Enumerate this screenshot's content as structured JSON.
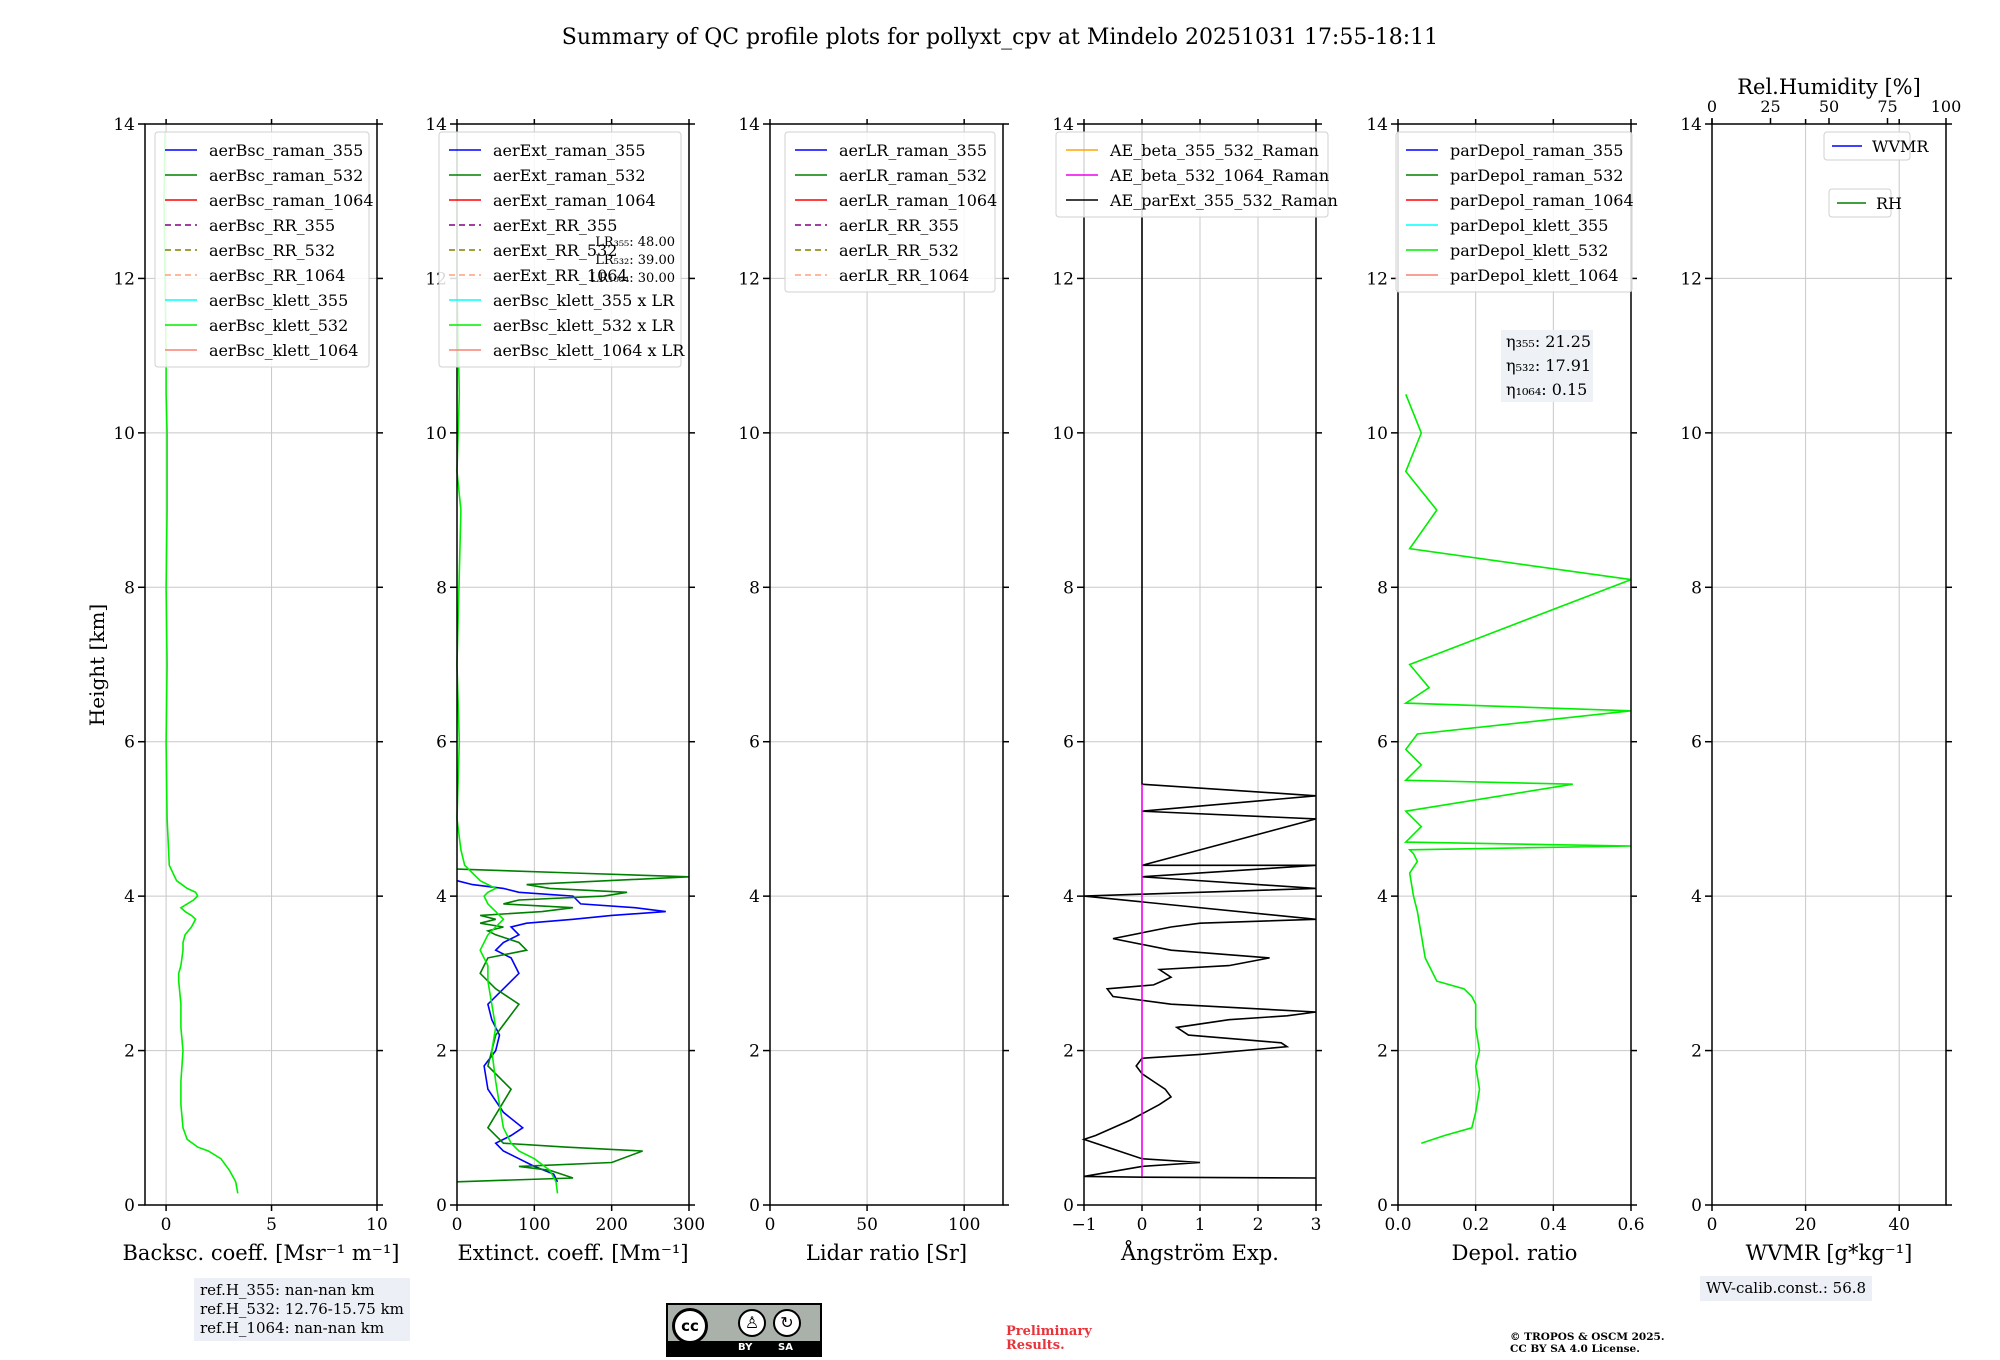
{
  "chart_data": {
    "type": "line",
    "title": "Summary of QC profile plots for pollyxt_cpv at Mindelo 20251031 17:55-18:11",
    "ylabel": "Height [km]",
    "ylim": [
      0,
      14
    ],
    "yticks": [
      "0",
      "2",
      "4",
      "6",
      "8",
      "10",
      "12",
      "14"
    ],
    "panels": [
      {
        "id": "bsc",
        "xlabel": "Backsc. coeff. [Msr⁻¹ m⁻¹]",
        "xlim": [
          -1,
          10
        ],
        "xticks": [
          0,
          5,
          10
        ],
        "legend": [
          "aerBsc_raman_355",
          "aerBsc_raman_532",
          "aerBsc_raman_1064",
          "aerBsc_RR_355",
          "aerBsc_RR_532",
          "aerBsc_RR_1064",
          "aerBsc_klett_355",
          "aerBsc_klett_532",
          "aerBsc_klett_1064"
        ],
        "series": [
          {
            "name": "aerBsc_klett_532",
            "color": "#00ee00",
            "x": [
              3.4,
              3.3,
              3.0,
              2.6,
              2.0,
              1.5,
              1.0,
              0.8,
              0.7,
              0.7,
              0.8,
              0.7,
              0.7,
              0.6,
              0.6,
              0.7,
              0.8,
              0.8,
              0.9,
              1.2,
              1.4,
              1.2,
              0.9,
              0.7,
              1.0,
              1.3,
              1.5,
              1.4,
              1.0,
              0.5,
              0.15,
              0.05,
              0.0,
              0.05,
              0.0,
              0.05,
              0.05,
              0.0,
              0.0,
              -0.05,
              -0.1,
              -0.05
            ],
            "y": [
              0.15,
              0.3,
              0.45,
              0.6,
              0.7,
              0.75,
              0.85,
              1.0,
              1.3,
              1.6,
              2.0,
              2.3,
              2.6,
              2.9,
              3.0,
              3.1,
              3.3,
              3.4,
              3.5,
              3.6,
              3.7,
              3.75,
              3.8,
              3.85,
              3.9,
              3.95,
              4.0,
              4.05,
              4.1,
              4.2,
              4.4,
              5.0,
              6.0,
              7.0,
              8.0,
              9.0,
              10.0,
              10.5,
              11.0,
              12.0,
              13.0,
              13.9
            ]
          }
        ]
      },
      {
        "id": "ext",
        "xlabel": "Extinct. coeff. [Mm⁻¹]",
        "xlim": [
          0,
          300
        ],
        "xticks": [
          0,
          100,
          200,
          300
        ],
        "legend": [
          "aerExt_raman_355",
          "aerExt_raman_532",
          "aerExt_raman_1064",
          "aerExt_RR_355",
          "aerExt_RR_532",
          "aerExt_RR_1064",
          "aerBsc_klett_355 x LR",
          "aerBsc_klett_532 x LR",
          "aerBsc_klett_1064 x LR"
        ],
        "lr_labels": [
          "LR₃₅₅: 48.00",
          "LR₅₃₂: 39.00",
          "LR₁₀₆₄: 30.00"
        ],
        "series": [
          {
            "name": "aerExt_raman_355",
            "color": "#0000ff",
            "x": [
              130,
              125,
              100,
              80,
              60,
              50,
              70,
              85,
              60,
              40,
              35,
              50,
              55,
              45,
              40,
              60,
              80,
              70,
              50,
              60,
              80,
              70,
              90,
              150,
              200,
              270,
              230,
              160,
              150,
              80,
              60,
              20,
              0
            ],
            "y": [
              0.3,
              0.4,
              0.5,
              0.6,
              0.7,
              0.8,
              0.9,
              1.0,
              1.2,
              1.5,
              1.8,
              2.0,
              2.2,
              2.4,
              2.6,
              2.8,
              3.0,
              3.2,
              3.3,
              3.4,
              3.5,
              3.6,
              3.65,
              3.7,
              3.75,
              3.8,
              3.85,
              3.9,
              4.0,
              4.05,
              4.1,
              4.15,
              4.2
            ]
          },
          {
            "name": "aerExt_raman_532",
            "color": "#008000",
            "x": [
              0,
              150,
              120,
              80,
              200,
              240,
              140,
              60,
              40,
              70,
              40,
              50,
              80,
              50,
              30,
              40,
              90,
              80,
              50,
              40,
              60,
              30,
              50,
              30,
              110,
              150,
              60,
              80,
              190,
              220,
              120,
              90,
              300,
              150,
              0
            ],
            "y": [
              0.3,
              0.35,
              0.45,
              0.5,
              0.55,
              0.7,
              0.75,
              0.8,
              1.0,
              1.5,
              1.8,
              2.2,
              2.6,
              2.8,
              3.0,
              3.2,
              3.3,
              3.4,
              3.5,
              3.55,
              3.6,
              3.65,
              3.7,
              3.75,
              3.8,
              3.85,
              3.9,
              3.95,
              4.0,
              4.05,
              4.1,
              4.15,
              4.25,
              4.3,
              4.35
            ]
          },
          {
            "name": "aerBsc_klett_532 x LR",
            "color": "#00ee00",
            "x": [
              130,
              128,
              120,
              100,
              80,
              70,
              60,
              55,
              50,
              45,
              50,
              45,
              40,
              40,
              30,
              40,
              50,
              60,
              50,
              40,
              35,
              40,
              50,
              40,
              30,
              10,
              5,
              0,
              3,
              0,
              5,
              0,
              3,
              0,
              0
            ],
            "y": [
              0.15,
              0.3,
              0.45,
              0.6,
              0.7,
              0.8,
              1.0,
              1.3,
              1.6,
              2.0,
              2.3,
              2.6,
              2.9,
              3.1,
              3.3,
              3.5,
              3.6,
              3.7,
              3.8,
              3.9,
              4.0,
              4.05,
              4.1,
              4.15,
              4.2,
              4.4,
              4.6,
              5.0,
              6.0,
              7.0,
              9.0,
              9.5,
              10.5,
              12.0,
              13.9
            ]
          }
        ]
      },
      {
        "id": "lr",
        "xlabel": "Lidar ratio [Sr]",
        "xlim": [
          0,
          120
        ],
        "xticks": [
          0,
          50,
          100
        ],
        "legend": [
          "aerLR_raman_355",
          "aerLR_raman_532",
          "aerLR_raman_1064",
          "aerLR_RR_355",
          "aerLR_RR_532",
          "aerLR_RR_1064"
        ],
        "series": []
      },
      {
        "id": "ae",
        "xlabel": "Ångström Exp.",
        "xlim": [
          -1,
          3
        ],
        "xticks": [
          -1,
          0,
          1,
          2,
          3
        ],
        "legend": [
          "AE_beta_355_532_Raman",
          "AE_beta_532_1064_Raman",
          "AE_parExt_355_532_Raman"
        ],
        "series": [
          {
            "name": "AE_parExt_355_532_Raman",
            "color": "#000000",
            "x": [
              3,
              0,
              -1,
              0,
              1,
              0,
              -1,
              -0.8,
              -0.2,
              0.3,
              0.5,
              0.4,
              0.2,
              0.0,
              -0.1,
              0.0,
              1,
              2.5,
              2.4,
              0.8,
              0.6,
              1.5,
              2.5,
              3,
              0.5,
              -0.5,
              -0.6,
              0.2,
              0.5,
              0.3,
              1.5,
              2.2,
              0.5,
              -0.5,
              0.5,
              1,
              3,
              -1,
              3,
              0,
              3,
              0,
              3,
              0,
              3,
              0,
              0
            ],
            "y": [
              0.35,
              0.36,
              0.37,
              0.5,
              0.55,
              0.6,
              0.85,
              0.9,
              1.1,
              1.3,
              1.4,
              1.5,
              1.6,
              1.7,
              1.8,
              1.9,
              1.95,
              2.05,
              2.1,
              2.2,
              2.3,
              2.4,
              2.45,
              2.5,
              2.6,
              2.7,
              2.8,
              2.85,
              2.95,
              3.05,
              3.1,
              3.2,
              3.3,
              3.45,
              3.6,
              3.65,
              3.7,
              4.0,
              4.1,
              4.25,
              4.4,
              4.4,
              5.0,
              5.1,
              5.3,
              5.45,
              13.9
            ]
          },
          {
            "name": "AE_beta_532_1064_Raman",
            "color": "#ee00ee",
            "x": [
              0,
              0
            ],
            "y": [
              0.37,
              5.45
            ]
          }
        ]
      },
      {
        "id": "dep",
        "xlabel": "Depol. ratio",
        "xlim": [
          0,
          0.6
        ],
        "xticks": [
          "0.0",
          "0.2",
          "0.4",
          "0.6"
        ],
        "legend": [
          "parDepol_raman_355",
          "parDepol_raman_532",
          "parDepol_raman_1064",
          "parDepol_klett_355",
          "parDepol_klett_532",
          "parDepol_klett_1064"
        ],
        "eta_labels": [
          "η₃₅₅: 21.25",
          "η₅₃₂: 17.91",
          "η₁₀₆₄: 0.15"
        ],
        "series": [
          {
            "name": "parDepol_klett_532",
            "color": "#00ee00",
            "x": [
              0.06,
              0.12,
              0.19,
              0.2,
              0.21,
              0.2,
              0.21,
              0.2,
              0.2,
              0.19,
              0.17,
              0.1,
              0.07,
              0.06,
              0.05,
              0.04,
              0.03,
              0.05,
              0.04,
              0.03,
              0.6,
              0.02,
              0.06,
              0.02,
              0.45,
              0.02,
              0.06,
              0.02,
              0.05,
              0.6,
              0.02,
              0.08,
              0.03,
              0.6,
              0.03,
              0.1,
              0.02,
              0.06,
              0.02
            ],
            "y": [
              0.8,
              0.9,
              1.0,
              1.2,
              1.5,
              1.8,
              2.0,
              2.3,
              2.6,
              2.7,
              2.8,
              2.9,
              3.2,
              3.5,
              3.8,
              4.0,
              4.3,
              4.45,
              4.55,
              4.6,
              4.65,
              4.7,
              4.9,
              5.1,
              5.45,
              5.5,
              5.7,
              5.9,
              6.1,
              6.4,
              6.5,
              6.7,
              7.0,
              8.1,
              8.5,
              9.0,
              9.5,
              10.0,
              10.5
            ]
          }
        ]
      },
      {
        "id": "wv",
        "xlabel": "WVMR [g*kg⁻¹]",
        "xlim": [
          0,
          50
        ],
        "xticks": [
          0,
          20,
          40
        ],
        "top_axis_label": "Rel.Humidity [%]",
        "top_xlim": [
          0,
          100
        ],
        "top_xticks": [
          0,
          25,
          50,
          75,
          100
        ],
        "legend": [
          "WVMR",
          "RH"
        ],
        "series": []
      }
    ]
  },
  "annotations": {
    "refH": [
      "ref.H_355: nan-nan km",
      "ref.H_532: 12.76-15.75 km",
      "ref.H_1064: nan-nan km"
    ],
    "wv_calib": "WV-calib.const.: 56.8",
    "license_by": "BY",
    "license_sa": "SA",
    "cc_label": "cc",
    "preliminary": [
      "Preliminary",
      "Results."
    ],
    "copyright": [
      "© TROPOS & OSCM 2025.",
      "CC BY SA 4.0 License."
    ]
  },
  "colors": {
    "aerBsc_raman_355": "#0000ff",
    "aerBsc_raman_532": "#008000",
    "aerBsc_raman_1064": "#ff0000",
    "aerBsc_RR_355": "#800080",
    "aerBsc_RR_532": "#808000",
    "aerBsc_RR_1064": "#ffa07a",
    "aerBsc_klett_355": "#00ffff",
    "aerBsc_klett_532": "#00ee00",
    "aerBsc_klett_1064": "#fa8072",
    "aerExt_raman_355": "#0000ff",
    "aerExt_raman_532": "#008000",
    "aerExt_raman_1064": "#ff0000",
    "aerExt_RR_355": "#800080",
    "aerExt_RR_532": "#808000",
    "aerExt_RR_1064": "#ffa07a",
    "aerBsc_klett_355 x LR": "#00ffff",
    "aerBsc_klett_532 x LR": "#00ee00",
    "aerBsc_klett_1064 x LR": "#fa8072",
    "aerLR_raman_355": "#0000ff",
    "aerLR_raman_532": "#008000",
    "aerLR_raman_1064": "#ff0000",
    "aerLR_RR_355": "#800080",
    "aerLR_RR_532": "#808000",
    "aerLR_RR_1064": "#ffa07a",
    "AE_beta_355_532_Raman": "#ffa500",
    "AE_beta_532_1064_Raman": "#ee00ee",
    "AE_parExt_355_532_Raman": "#000000",
    "parDepol_raman_355": "#0000ff",
    "parDepol_raman_532": "#008000",
    "parDepol_raman_1064": "#ff0000",
    "parDepol_klett_355": "#00ffff",
    "parDepol_klett_532": "#00ee00",
    "parDepol_klett_1064": "#fa8072",
    "WVMR": "#0000ff",
    "RH": "#008000"
  }
}
